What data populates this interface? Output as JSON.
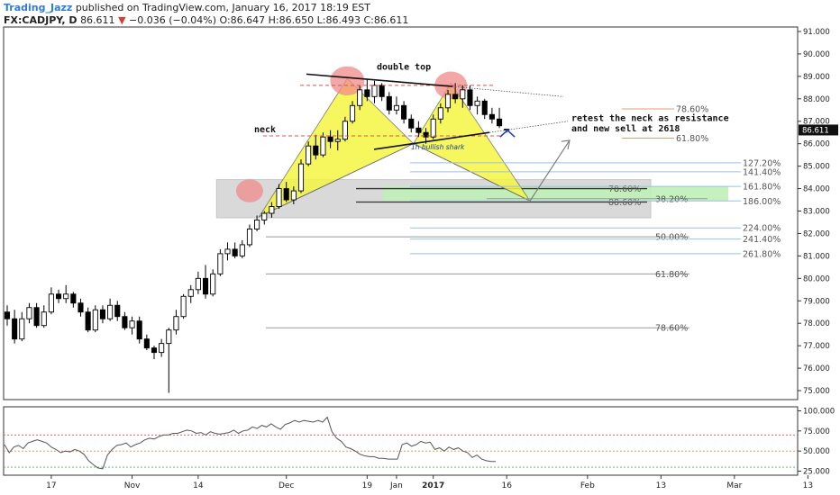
{
  "header": {
    "author": "Trading_Jazz",
    "published": "published on TradingView.com, January 16, 2017 18:19 EST",
    "symbol": "FX:CADJPY, D",
    "last": "86.611",
    "arrow": "▼",
    "change": "−0.036 (−0.04%)",
    "o_label": "O:",
    "o_value": "86.647",
    "h_label": "H:",
    "h_value": "86.650",
    "l_label": "L:",
    "l_value": "86.493",
    "c_label": "C:",
    "c_value": "86.611"
  },
  "colors": {
    "up": "#ffffff",
    "down": "#000000",
    "harmonic_fill": "#f5f542",
    "rsi": "#555555",
    "price_badge": "#111111"
  },
  "chart_data": [
    {
      "type": "candlestick",
      "title": "FX:CADJPY, D",
      "ylim": [
        74.6,
        91.2
      ],
      "y_ticks": [
        "91.000",
        "90.000",
        "89.000",
        "88.000",
        "87.000",
        "86.000",
        "85.000",
        "84.000",
        "83.000",
        "82.000",
        "81.000",
        "80.000",
        "79.000",
        "78.000",
        "77.000",
        "76.000",
        "75.000"
      ],
      "last_price_label": "86.611",
      "x_ticks": [
        {
          "label": "17",
          "index": 6
        },
        {
          "label": "Nov",
          "index": 17
        },
        {
          "label": "14",
          "index": 26
        },
        {
          "label": "Dec",
          "index": 38
        },
        {
          "label": "19",
          "index": 49
        },
        {
          "label": "Jan",
          "index": 53
        },
        {
          "label": "2017",
          "index": 58
        },
        {
          "label": "16",
          "index": 68
        },
        {
          "label": "Feb",
          "index": 79
        },
        {
          "label": "13",
          "index": 89
        },
        {
          "label": "Mar",
          "index": 99
        },
        {
          "label": "13",
          "index": 109
        }
      ],
      "candles": [
        {
          "o": 78.5,
          "h": 78.8,
          "l": 77.9,
          "c": 78.2
        },
        {
          "o": 78.2,
          "h": 78.6,
          "l": 77.1,
          "c": 77.3
        },
        {
          "o": 77.3,
          "h": 78.5,
          "l": 77.2,
          "c": 78.2
        },
        {
          "o": 78.2,
          "h": 78.9,
          "l": 78.0,
          "c": 78.7
        },
        {
          "o": 78.7,
          "h": 78.9,
          "l": 77.8,
          "c": 77.9
        },
        {
          "o": 77.9,
          "h": 78.8,
          "l": 77.8,
          "c": 78.5
        },
        {
          "o": 78.5,
          "h": 79.6,
          "l": 78.4,
          "c": 79.3
        },
        {
          "o": 79.3,
          "h": 79.5,
          "l": 78.9,
          "c": 79.1
        },
        {
          "o": 79.1,
          "h": 79.7,
          "l": 78.9,
          "c": 79.3
        },
        {
          "o": 79.3,
          "h": 79.4,
          "l": 78.7,
          "c": 78.9
        },
        {
          "o": 78.9,
          "h": 79.1,
          "l": 78.3,
          "c": 78.5
        },
        {
          "o": 78.5,
          "h": 78.7,
          "l": 77.6,
          "c": 77.7
        },
        {
          "o": 77.7,
          "h": 78.8,
          "l": 77.6,
          "c": 78.6
        },
        {
          "o": 78.6,
          "h": 78.8,
          "l": 78.0,
          "c": 78.2
        },
        {
          "o": 78.2,
          "h": 79.1,
          "l": 78.1,
          "c": 78.8
        },
        {
          "o": 78.8,
          "h": 79.0,
          "l": 78.1,
          "c": 78.3
        },
        {
          "o": 78.3,
          "h": 78.5,
          "l": 77.7,
          "c": 77.8
        },
        {
          "o": 77.8,
          "h": 78.3,
          "l": 77.5,
          "c": 78.1
        },
        {
          "o": 78.1,
          "h": 78.3,
          "l": 77.1,
          "c": 77.3
        },
        {
          "o": 77.3,
          "h": 77.5,
          "l": 76.8,
          "c": 76.9
        },
        {
          "o": 76.9,
          "h": 77.0,
          "l": 76.4,
          "c": 76.7
        },
        {
          "o": 76.7,
          "h": 77.3,
          "l": 76.5,
          "c": 77.1
        },
        {
          "o": 77.1,
          "h": 77.8,
          "l": 74.9,
          "c": 77.7
        },
        {
          "o": 77.7,
          "h": 78.6,
          "l": 77.5,
          "c": 78.3
        },
        {
          "o": 78.3,
          "h": 79.3,
          "l": 78.2,
          "c": 79.2
        },
        {
          "o": 79.2,
          "h": 79.7,
          "l": 78.9,
          "c": 79.5
        },
        {
          "o": 79.5,
          "h": 80.3,
          "l": 79.3,
          "c": 80.0
        },
        {
          "o": 80.0,
          "h": 80.6,
          "l": 79.1,
          "c": 79.3
        },
        {
          "o": 79.3,
          "h": 80.4,
          "l": 79.2,
          "c": 80.2
        },
        {
          "o": 80.2,
          "h": 81.3,
          "l": 80.1,
          "c": 81.1
        },
        {
          "o": 81.1,
          "h": 81.6,
          "l": 80.8,
          "c": 81.3
        },
        {
          "o": 81.3,
          "h": 81.6,
          "l": 80.9,
          "c": 81.0
        },
        {
          "o": 81.0,
          "h": 81.7,
          "l": 80.9,
          "c": 81.5
        },
        {
          "o": 81.5,
          "h": 82.4,
          "l": 81.4,
          "c": 82.2
        },
        {
          "o": 82.2,
          "h": 82.8,
          "l": 82.1,
          "c": 82.6
        },
        {
          "o": 82.6,
          "h": 83.0,
          "l": 82.4,
          "c": 82.9
        },
        {
          "o": 82.9,
          "h": 83.4,
          "l": 82.7,
          "c": 83.2
        },
        {
          "o": 83.2,
          "h": 84.2,
          "l": 83.1,
          "c": 84.0
        },
        {
          "o": 84.0,
          "h": 84.3,
          "l": 83.4,
          "c": 83.5
        },
        {
          "o": 83.5,
          "h": 84.1,
          "l": 83.3,
          "c": 83.9
        },
        {
          "o": 83.9,
          "h": 85.3,
          "l": 83.8,
          "c": 85.1
        },
        {
          "o": 85.1,
          "h": 86.1,
          "l": 85.0,
          "c": 85.9
        },
        {
          "o": 85.9,
          "h": 86.4,
          "l": 85.3,
          "c": 85.5
        },
        {
          "o": 85.5,
          "h": 86.5,
          "l": 85.4,
          "c": 86.3
        },
        {
          "o": 86.3,
          "h": 86.6,
          "l": 85.8,
          "c": 86.1
        },
        {
          "o": 86.1,
          "h": 86.6,
          "l": 85.7,
          "c": 86.2
        },
        {
          "o": 86.2,
          "h": 87.2,
          "l": 86.1,
          "c": 87.0
        },
        {
          "o": 87.0,
          "h": 87.9,
          "l": 86.9,
          "c": 87.7
        },
        {
          "o": 87.7,
          "h": 88.6,
          "l": 87.5,
          "c": 88.4
        },
        {
          "o": 88.4,
          "h": 88.9,
          "l": 87.9,
          "c": 88.1
        },
        {
          "o": 88.1,
          "h": 88.8,
          "l": 87.8,
          "c": 88.6
        },
        {
          "o": 88.6,
          "h": 88.7,
          "l": 87.9,
          "c": 88.1
        },
        {
          "o": 88.1,
          "h": 88.3,
          "l": 87.3,
          "c": 87.5
        },
        {
          "o": 87.5,
          "h": 88.1,
          "l": 87.3,
          "c": 87.7
        },
        {
          "o": 87.7,
          "h": 87.9,
          "l": 86.9,
          "c": 87.1
        },
        {
          "o": 87.1,
          "h": 87.3,
          "l": 86.5,
          "c": 86.7
        },
        {
          "o": 86.7,
          "h": 87.0,
          "l": 86.3,
          "c": 86.5
        },
        {
          "o": 86.5,
          "h": 86.7,
          "l": 86.0,
          "c": 86.3
        },
        {
          "o": 86.3,
          "h": 87.3,
          "l": 86.2,
          "c": 87.1
        },
        {
          "o": 87.1,
          "h": 87.8,
          "l": 86.9,
          "c": 87.6
        },
        {
          "o": 87.6,
          "h": 88.4,
          "l": 87.4,
          "c": 88.2
        },
        {
          "o": 88.2,
          "h": 88.7,
          "l": 87.8,
          "c": 88.0
        },
        {
          "o": 88.0,
          "h": 88.6,
          "l": 87.6,
          "c": 88.4
        },
        {
          "o": 88.4,
          "h": 88.6,
          "l": 87.5,
          "c": 87.7
        },
        {
          "o": 87.7,
          "h": 88.1,
          "l": 87.3,
          "c": 87.9
        },
        {
          "o": 87.9,
          "h": 88.0,
          "l": 87.1,
          "c": 87.3
        },
        {
          "o": 87.3,
          "h": 87.6,
          "l": 86.9,
          "c": 87.1
        },
        {
          "o": 87.1,
          "h": 87.6,
          "l": 86.7,
          "c": 86.8
        },
        {
          "o": 86.647,
          "h": 86.65,
          "l": 86.493,
          "c": 86.611
        }
      ],
      "fib_levels": [
        {
          "label": "78.60%",
          "price": 87.55,
          "color": "#d9a27a"
        },
        {
          "label": "61.80%",
          "price": 86.25,
          "color": "#d9a27a"
        },
        {
          "label": "127.20%",
          "price": 85.15,
          "color": "#9bbfe0"
        },
        {
          "label": "141.40%",
          "price": 84.75,
          "color": "#9bbfe0"
        },
        {
          "label": "161.80%",
          "price": 84.1,
          "color": "#9bbfe0"
        },
        {
          "label": "38.20%",
          "price": 83.55,
          "color": "#999999"
        },
        {
          "label": "186.00%",
          "price": 83.45,
          "color": "#9bbfe0"
        },
        {
          "label": "224.00%",
          "price": 82.25,
          "color": "#9bbfe0"
        },
        {
          "label": "50.00%",
          "price": 81.85,
          "color": "#999999"
        },
        {
          "label": "241.40%",
          "price": 81.75,
          "color": "#9bbfe0"
        },
        {
          "label": "261.80%",
          "price": 81.1,
          "color": "#9bbfe0"
        },
        {
          "label": "61.80%",
          "price": 80.2,
          "color": "#999999"
        },
        {
          "label": "78.60%",
          "price": 77.8,
          "color": "#999999"
        }
      ],
      "zone_levels": [
        {
          "label": "78.60%",
          "price": 84.0
        },
        {
          "label": "88.60%",
          "price": 83.4
        }
      ],
      "annotations": [
        "double top",
        "neck",
        "retest the neck as resistance",
        "and new sell at 2618",
        "1h bullish shark"
      ]
    },
    {
      "type": "line",
      "title": "",
      "ylim": [
        20,
        105
      ],
      "y_ticks": [
        "100.000",
        "75.000",
        "50.000",
        "25.000"
      ],
      "series": [
        {
          "values": [
            58,
            48,
            55,
            57,
            53,
            60,
            62,
            64,
            62,
            60,
            55,
            52,
            48,
            50,
            49,
            52,
            50,
            46,
            38,
            33,
            29,
            28,
            45,
            52,
            57,
            58,
            60,
            55,
            58,
            60,
            64,
            66,
            65,
            68,
            70,
            70,
            72,
            72,
            74,
            76,
            75,
            72,
            73,
            70,
            74,
            72,
            71,
            72,
            73,
            76,
            72,
            75,
            76,
            80,
            78,
            82,
            80,
            84,
            80,
            77,
            83,
            85,
            88,
            86,
            88,
            87,
            86,
            88,
            86,
            92,
            74,
            66,
            62,
            55,
            53,
            50,
            46,
            44,
            43,
            43,
            41,
            41,
            40,
            40,
            40,
            58,
            60,
            56,
            58,
            62,
            60,
            61,
            52,
            54,
            50,
            55,
            52,
            54,
            50,
            48,
            42,
            45,
            40,
            38,
            37,
            37
          ]
        }
      ]
    }
  ]
}
